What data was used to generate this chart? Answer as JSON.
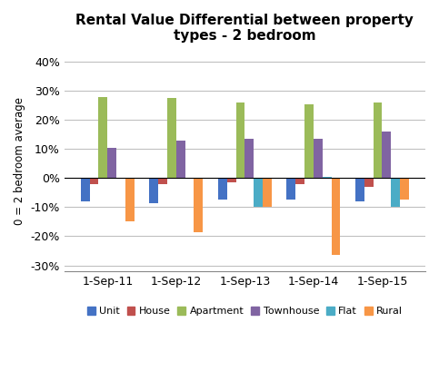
{
  "title": "Rental Value Differential between property\ntypes - 2 bedroom",
  "ylabel": "0 = 2 bedroom average",
  "categories": [
    "1-Sep-11",
    "1-Sep-12",
    "1-Sep-13",
    "1-Sep-14",
    "1-Sep-15"
  ],
  "series": {
    "Unit": [
      -0.08,
      -0.085,
      -0.075,
      -0.075,
      -0.08
    ],
    "House": [
      -0.02,
      -0.02,
      -0.015,
      -0.02,
      -0.03
    ],
    "Apartment": [
      0.28,
      0.275,
      0.26,
      0.255,
      0.26
    ],
    "Townhouse": [
      0.105,
      0.13,
      0.135,
      0.135,
      0.16
    ],
    "Flat": [
      0.0,
      0.0,
      -0.1,
      0.005,
      -0.1
    ],
    "Rural": [
      -0.15,
      -0.185,
      -0.1,
      -0.265,
      -0.075
    ]
  },
  "colors": {
    "Unit": "#4472C4",
    "House": "#C0504D",
    "Apartment": "#9BBB59",
    "Townhouse": "#8064A2",
    "Flat": "#4BACC6",
    "Rural": "#F79646"
  },
  "ylim": [
    -0.32,
    0.44
  ],
  "yticks": [
    -0.3,
    -0.2,
    -0.1,
    0.0,
    0.1,
    0.2,
    0.3,
    0.4
  ],
  "background_color": "#FFFFFF",
  "grid_color": "#C0C0C0",
  "bar_width": 0.13
}
